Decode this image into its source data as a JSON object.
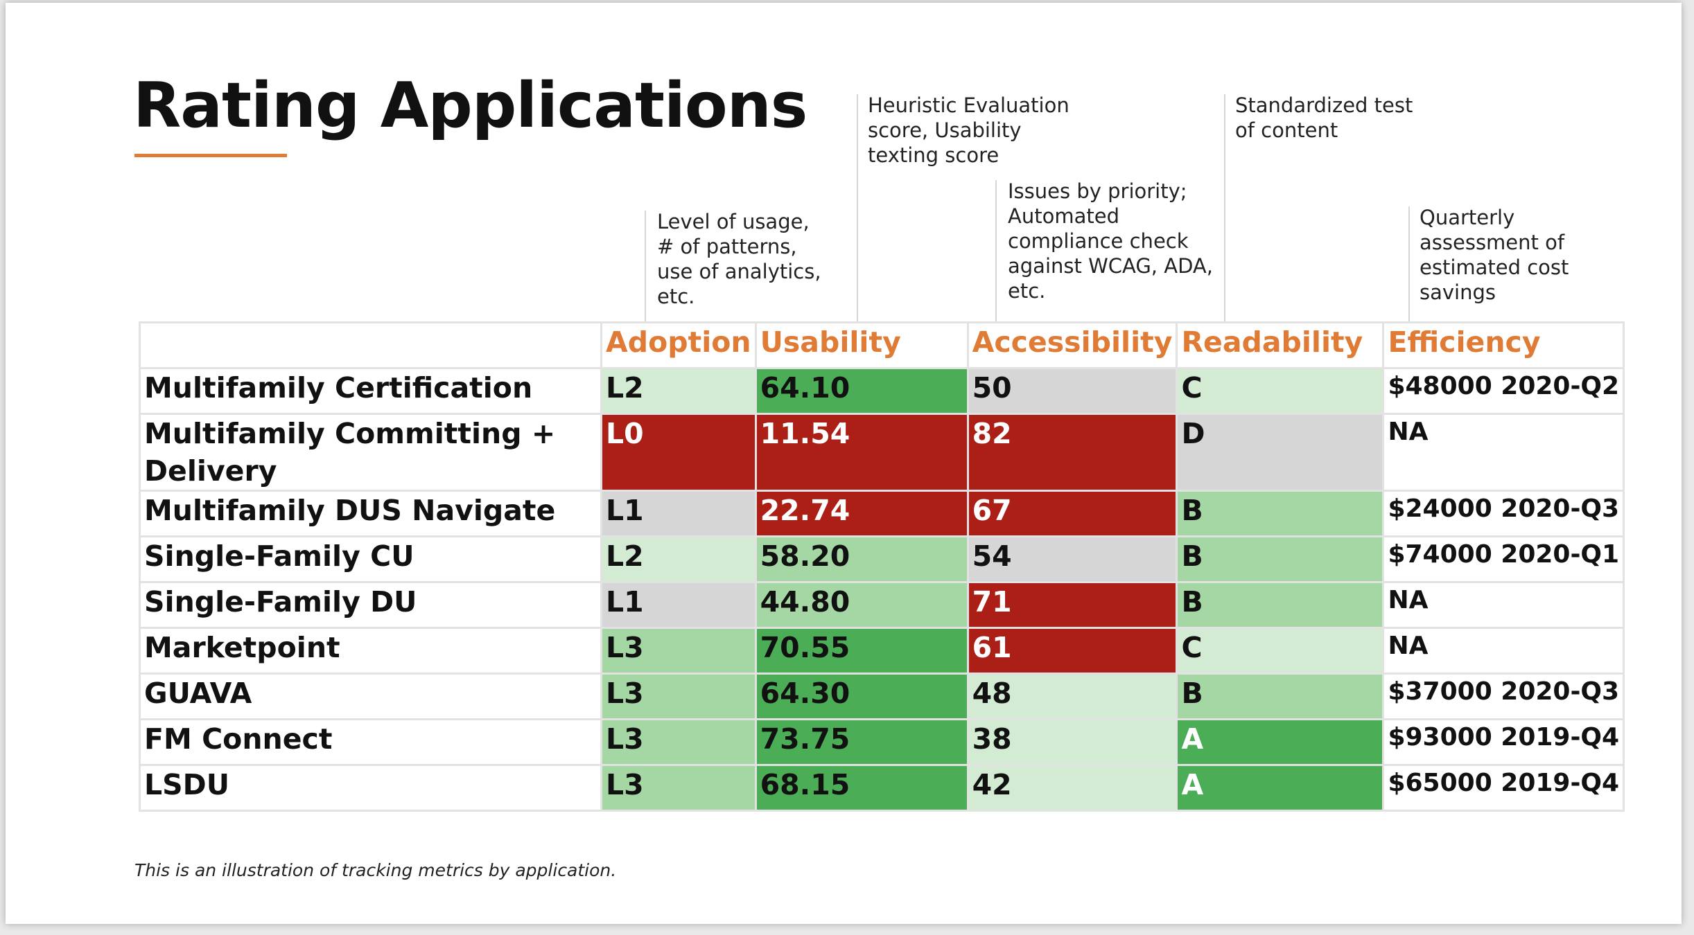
{
  "title": "Rating Applications",
  "notes": {
    "adoption": [
      "Level of usage,",
      "# of patterns,",
      "use of analytics,",
      "etc."
    ],
    "usability": [
      "Heuristic Evaluation",
      "score, Usability",
      "texting score"
    ],
    "accessibility": [
      "Issues by priority;",
      "Automated",
      "compliance check",
      "against WCAG, ADA,",
      "etc."
    ],
    "readability": [
      "Standardized test",
      "of content"
    ],
    "efficiency": [
      "Quarterly",
      "assessment of",
      "estimated cost",
      "savings"
    ]
  },
  "headers": [
    "",
    "Adoption",
    "Usability",
    "Accessibility",
    "Readability",
    "Efficiency"
  ],
  "rows": [
    {
      "name": "Multifamily Certification",
      "adoption": "L2",
      "usability": "64.10",
      "accessibility": "50",
      "readability": "C",
      "efficiency": "$48000 2020-Q2"
    },
    {
      "name": "Multifamily Committing + Delivery",
      "adoption": "L0",
      "usability": "11.54",
      "accessibility": "82",
      "readability": "D",
      "efficiency": "NA"
    },
    {
      "name": "Multifamily DUS Navigate",
      "adoption": "L1",
      "usability": "22.74",
      "accessibility": "67",
      "readability": "B",
      "efficiency": "$24000 2020-Q3"
    },
    {
      "name": "Single-Family CU",
      "adoption": "L2",
      "usability": "58.20",
      "accessibility": "54",
      "readability": "B",
      "efficiency": "$74000 2020-Q1"
    },
    {
      "name": "Single-Family DU",
      "adoption": "L1",
      "usability": "44.80",
      "accessibility": "71",
      "readability": "B",
      "efficiency": "NA"
    },
    {
      "name": "Marketpoint",
      "adoption": "L3",
      "usability": "70.55",
      "accessibility": "61",
      "readability": "C",
      "efficiency": "NA"
    },
    {
      "name": "GUAVA",
      "adoption": "L3",
      "usability": "64.30",
      "accessibility": "48",
      "readability": "B",
      "efficiency": "$37000 2020-Q3"
    },
    {
      "name": "FM Connect",
      "adoption": "L3",
      "usability": "73.75",
      "accessibility": "38",
      "readability": "A",
      "efficiency": "$93000 2019-Q4"
    },
    {
      "name": "LSDU",
      "adoption": "L3",
      "usability": "68.15",
      "accessibility": "42",
      "readability": "A",
      "efficiency": "$65000 2019-Q4"
    }
  ],
  "caption": "This is an illustration of tracking metrics by application.",
  "colors": {
    "accent": "#e07b36",
    "dark_green": "#4cad57",
    "mid_green": "#a5d7a5",
    "light_green": "#d3ebd3",
    "gray": "#d6d6d6",
    "red": "#ab1f17"
  }
}
